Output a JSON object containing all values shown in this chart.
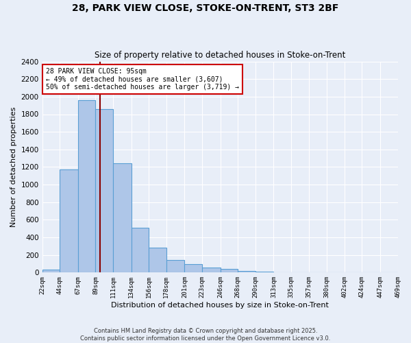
{
  "title_line1": "28, PARK VIEW CLOSE, STOKE-ON-TRENT, ST3 2BF",
  "title_line2": "Size of property relative to detached houses in Stoke-on-Trent",
  "xlabel": "Distribution of detached houses by size in Stoke-on-Trent",
  "ylabel": "Number of detached properties",
  "bin_edges": [
    22,
    44,
    67,
    89,
    111,
    134,
    156,
    178,
    201,
    223,
    246,
    268,
    290,
    313,
    335,
    357,
    380,
    402,
    424,
    447,
    469
  ],
  "bar_heights": [
    30,
    1170,
    1960,
    1860,
    1240,
    510,
    280,
    140,
    100,
    60,
    40,
    15,
    8,
    5,
    3,
    2,
    1,
    1,
    1,
    0
  ],
  "bar_color": "#aec6e8",
  "bar_edge_color": "#5a9fd4",
  "property_size": 95,
  "vline_color": "#8b0000",
  "annotation_text": "28 PARK VIEW CLOSE: 95sqm\n← 49% of detached houses are smaller (3,607)\n50% of semi-detached houses are larger (3,719) →",
  "annotation_box_color": "white",
  "annotation_box_edge": "#cc0000",
  "ylim": [
    0,
    2400
  ],
  "yticks": [
    0,
    200,
    400,
    600,
    800,
    1000,
    1200,
    1400,
    1600,
    1800,
    2000,
    2200,
    2400
  ],
  "background_color": "#e8eef8",
  "grid_color": "white",
  "footnote": "Contains HM Land Registry data © Crown copyright and database right 2025.\nContains public sector information licensed under the Open Government Licence v3.0."
}
